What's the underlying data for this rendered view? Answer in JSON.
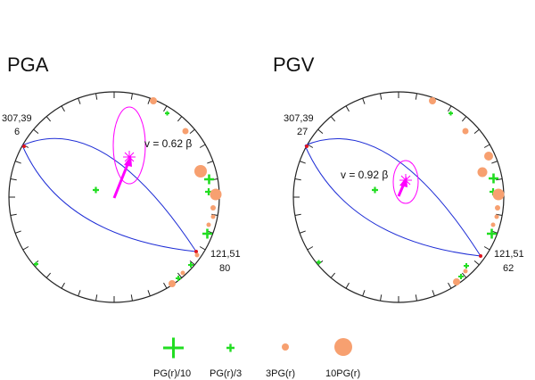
{
  "colors": {
    "outline": "#222222",
    "plane": "#1f2ed6",
    "vector": "#ff00ff",
    "green": "#22dd22",
    "orange": "#f7a070",
    "red": "#e0141e"
  },
  "panels": [
    {
      "title": "PGA",
      "strike_dip_1": "307,39",
      "rake_1": "6",
      "strike_dip_2": "121,51",
      "rake_2": "80",
      "velocity_label": "v = 0.62 β"
    },
    {
      "title": "PGV",
      "strike_dip_1": "307,39",
      "rake_1": "27",
      "strike_dip_2": "121,51",
      "rake_2": "62",
      "velocity_label": "v = 0.92 β"
    }
  ],
  "legend": [
    {
      "label": "PG(r)/10",
      "symbol": "green-plus-large"
    },
    {
      "label": "PG(r)/3",
      "symbol": "green-plus-small"
    },
    {
      "label": "3PG(r)",
      "symbol": "orange-dot-small"
    },
    {
      "label": "10PG(r)",
      "symbol": "orange-dot-large"
    }
  ]
}
